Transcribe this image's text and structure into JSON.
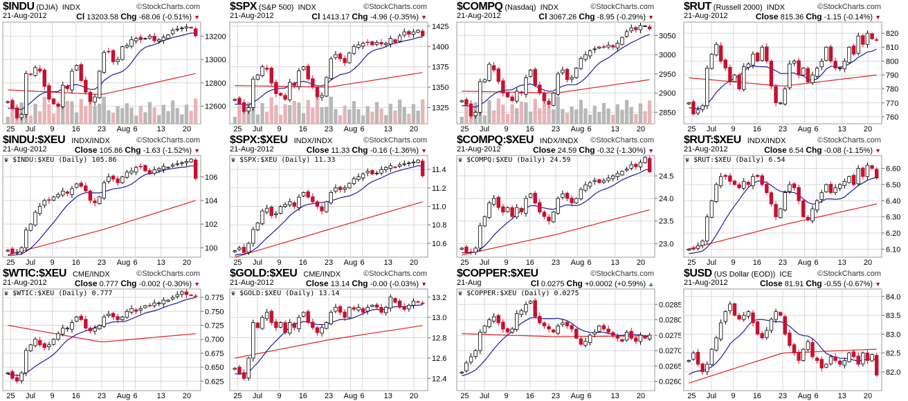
{
  "watermark": "©StockCharts.com",
  "colors": {
    "up": "#000000",
    "down": "#c8102e",
    "ma_fast": "#1a1a9a",
    "ma_slow": "#e02020",
    "grid": "#d8d8d8",
    "vol_up": "#b8b8b8",
    "vol_down": "#e8b4b8"
  },
  "x_labels": [
    "25",
    "Jul",
    "9",
    "16",
    "23",
    "Aug",
    "6",
    "13",
    "20"
  ],
  "chart_data": [
    {
      "type": "candlestick",
      "ticker": "$INDU",
      "name": "(DJIA)",
      "exchange": "INDX",
      "date": "21-Aug-2012",
      "close_label": "Cl",
      "close": "13203.58",
      "chg_label": "Chg",
      "chg": "-68.06 (-0.51%)",
      "dir": "down",
      "legend": "",
      "yticks": [
        "13200",
        "13000",
        "12800",
        "12600"
      ],
      "ylim": [
        12450,
        13320
      ],
      "closes": [
        12640,
        12580,
        12500,
        12530,
        12880,
        12870,
        12930,
        12900,
        12770,
        12660,
        12620,
        12600,
        12780,
        12750,
        12900,
        12950,
        12820,
        12720,
        12640,
        12680,
        12900,
        13060,
        13070,
        12980,
        13000,
        13110,
        13120,
        13170,
        13180,
        13170,
        13180,
        13200,
        13160,
        13170,
        13190,
        13210,
        13250,
        13260,
        13270,
        13280,
        13270,
        13203.58
      ],
      "ma_slow": [
        12740,
        12700,
        12880
      ],
      "volume": true
    },
    {
      "type": "candlestick",
      "ticker": "$SPX",
      "name": "(S&P 500)",
      "exchange": "INDX",
      "date": "21-Aug-2012",
      "close_label": "Cl",
      "close": "1413.17",
      "chg_label": "Chg",
      "chg": "-4.96 (-0.35%)",
      "dir": "down",
      "legend": "",
      "yticks": [
        "1425",
        "1400",
        "1375",
        "1350",
        "1325"
      ],
      "ylim": [
        1305,
        1430
      ],
      "closes": [
        1335,
        1330,
        1320,
        1325,
        1360,
        1365,
        1375,
        1372,
        1355,
        1342,
        1340,
        1335,
        1356,
        1352,
        1370,
        1375,
        1360,
        1350,
        1338,
        1340,
        1362,
        1385,
        1390,
        1385,
        1380,
        1392,
        1400,
        1402,
        1404,
        1405,
        1402,
        1405,
        1403,
        1404,
        1410,
        1405,
        1413,
        1418,
        1415,
        1418,
        1420,
        1413.17
      ],
      "ma_slow": [
        1352,
        1350,
        1368
      ],
      "volume": true
    },
    {
      "type": "candlestick",
      "ticker": "$COMPQ",
      "name": "(Nasdaq)",
      "exchange": "INDX",
      "date": "21-Aug-2012",
      "close_label": "Cl",
      "close": "3067.26",
      "chg_label": "Chg",
      "chg": "-8.95 (-0.29%)",
      "dir": "down",
      "legend": "",
      "yticks": [
        "3050",
        "3000",
        "2950",
        "2900",
        "2850"
      ],
      "ylim": [
        2820,
        3085
      ],
      "closes": [
        2880,
        2870,
        2840,
        2850,
        2930,
        2935,
        2975,
        2960,
        2930,
        2900,
        2890,
        2880,
        2905,
        2900,
        2940,
        2960,
        2920,
        2900,
        2880,
        2870,
        2900,
        2950,
        2960,
        2935,
        2940,
        2965,
        2990,
        3000,
        3010,
        3015,
        3020,
        3020,
        3025,
        3020,
        3030,
        3045,
        3060,
        3070,
        3065,
        3076,
        3075,
        3067.26
      ],
      "ma_slow": [
        2905,
        2900,
        2935
      ],
      "volume": true
    },
    {
      "type": "candlestick",
      "ticker": "$RUT",
      "name": "(Russell 2000)",
      "exchange": "INDX",
      "date": "21-Aug-2012",
      "close_label": "Close",
      "close": "815.36",
      "chg_label": "Chg",
      "chg": "-1.15 (-0.14%)",
      "dir": "down",
      "legend": "",
      "yticks": [
        "820",
        "810",
        "800",
        "790",
        "780",
        "770",
        "760"
      ],
      "ylim": [
        755,
        828
      ],
      "closes": [
        770,
        762,
        765,
        768,
        795,
        805,
        812,
        800,
        795,
        785,
        790,
        780,
        796,
        798,
        805,
        800,
        810,
        800,
        782,
        770,
        770,
        780,
        798,
        800,
        790,
        795,
        785,
        790,
        795,
        800,
        810,
        800,
        795,
        795,
        800,
        810,
        805,
        818,
        812,
        820,
        816,
        815.36
      ],
      "ma_slow": [
        788,
        782,
        790
      ],
      "volume": false
    },
    {
      "type": "candlestick",
      "ticker": "$INDU:$XEU",
      "name": "",
      "exchange": "INDX/INDX",
      "date": "21-Aug-2012",
      "close_label": "Close",
      "close": "105.86",
      "chg_label": "Chg",
      "chg": "-1.63 (-1.52%)",
      "dir": "down",
      "legend": "$INDU:$XEU (Daily) 105.86",
      "yticks": [
        "106",
        "104",
        "102",
        "100"
      ],
      "ylim": [
        99.2,
        107.8
      ],
      "closes": [
        99.8,
        99.5,
        99.6,
        100,
        101.5,
        102,
        103,
        103.5,
        104,
        104,
        104.3,
        104.5,
        104.8,
        104.6,
        105,
        105.4,
        105.2,
        104.8,
        104,
        103.8,
        104.3,
        105.5,
        106,
        105.8,
        105.5,
        106,
        106.4,
        106.5,
        106.8,
        106.9,
        106.5,
        106.3,
        106.6,
        106.7,
        106.9,
        106.8,
        107,
        107.1,
        107.2,
        107.3,
        107.5,
        105.86
      ],
      "ma_slow": [
        99.4,
        101.5,
        104
      ],
      "volume": false
    },
    {
      "type": "candlestick",
      "ticker": "$SPX:$XEU",
      "name": "",
      "exchange": "INDX/INDX",
      "date": "21-Aug-2012",
      "close_label": "Close",
      "close": "11.33",
      "chg_label": "Chg",
      "chg": "-0.16 (-1.36%)",
      "dir": "down",
      "legend": "$SPX:$XEU (Daily) 11.33",
      "yticks": [
        "11.4",
        "11.2",
        "11.0",
        "10.8",
        "10.6"
      ],
      "ylim": [
        10.45,
        11.55
      ],
      "closes": [
        10.52,
        10.55,
        10.5,
        10.6,
        10.75,
        10.82,
        10.95,
        10.98,
        10.9,
        10.92,
        11.0,
        11.02,
        11.05,
        11.0,
        11.1,
        11.15,
        11.1,
        11.05,
        11.0,
        10.95,
        11.05,
        11.15,
        11.2,
        11.18,
        11.2,
        11.25,
        11.3,
        11.32,
        11.35,
        11.38,
        11.35,
        11.36,
        11.4,
        11.42,
        11.44,
        11.42,
        11.45,
        11.46,
        11.47,
        11.48,
        11.5,
        11.33
      ],
      "ma_slow": [
        10.45,
        10.75,
        11.05
      ],
      "volume": false
    },
    {
      "type": "candlestick",
      "ticker": "$COMPQ:$XEU",
      "name": "",
      "exchange": "INDX/INDX",
      "date": "21-Aug-2012",
      "close_label": "Close",
      "close": "24.59",
      "chg_label": "Chg",
      "chg": "-0.32 (-1.30%)",
      "dir": "down",
      "legend": "$COMPQ:$XEU (Daily) 24.59",
      "yticks": [
        "24.5",
        "24.0",
        "23.5",
        "23.0"
      ],
      "ylim": [
        22.7,
        24.95
      ],
      "closes": [
        22.9,
        22.8,
        22.8,
        22.9,
        23.4,
        23.6,
        23.9,
        24.0,
        23.8,
        23.7,
        23.8,
        23.6,
        23.8,
        23.7,
        24.0,
        24.1,
        23.9,
        23.7,
        23.6,
        23.5,
        23.7,
        24.0,
        24.1,
        24.0,
        23.9,
        24.0,
        24.2,
        24.3,
        24.35,
        24.4,
        24.35,
        24.4,
        24.45,
        24.5,
        24.55,
        24.6,
        24.65,
        24.75,
        24.7,
        24.8,
        24.91,
        24.59
      ],
      "ma_slow": [
        22.75,
        23.2,
        23.75
      ],
      "volume": false
    },
    {
      "type": "candlestick",
      "ticker": "$RUT:$XEU",
      "name": "",
      "exchange": "INDX/INDX",
      "date": "21-Aug-2012",
      "close_label": "Close",
      "close": "6.54",
      "chg_label": "Chg",
      "chg": "-0.08 (-1.15%)",
      "dir": "down",
      "legend": "$RUT:$XEU (Daily) 6.54",
      "yticks": [
        "6.60",
        "6.50",
        "6.40",
        "6.30",
        "6.20",
        "6.10"
      ],
      "ylim": [
        6.05,
        6.68
      ],
      "closes": [
        6.1,
        6.1,
        6.12,
        6.15,
        6.3,
        6.4,
        6.5,
        6.55,
        6.55,
        6.52,
        6.5,
        6.48,
        6.52,
        6.5,
        6.55,
        6.55,
        6.5,
        6.45,
        6.38,
        6.3,
        6.35,
        6.45,
        6.5,
        6.48,
        6.4,
        6.3,
        6.28,
        6.35,
        6.4,
        6.45,
        6.5,
        6.45,
        6.48,
        6.5,
        6.52,
        6.55,
        6.5,
        6.6,
        6.55,
        6.62,
        6.6,
        6.54
      ],
      "ma_slow": [
        6.1,
        6.25,
        6.38
      ],
      "volume": false
    },
    {
      "type": "candlestick",
      "ticker": "$WTIC:$XEU",
      "name": "",
      "exchange": "CME/INDX",
      "date": "21-Aug-2012",
      "close_label": "Close",
      "close": "0.777",
      "chg_label": "Chg",
      "chg": "-0.002 (-0.30%)",
      "dir": "down",
      "legend": "$WTIC:$XEU (Daily) 0.777",
      "yticks": [
        "0.775",
        "0.750",
        "0.725",
        "0.700",
        "0.675",
        "0.650",
        "0.625"
      ],
      "ylim": [
        0.608,
        0.79
      ],
      "closes": [
        0.64,
        0.63,
        0.625,
        0.64,
        0.68,
        0.69,
        0.7,
        0.69,
        0.685,
        0.69,
        0.7,
        0.71,
        0.72,
        0.72,
        0.73,
        0.74,
        0.735,
        0.72,
        0.715,
        0.72,
        0.725,
        0.74,
        0.745,
        0.74,
        0.735,
        0.74,
        0.75,
        0.755,
        0.75,
        0.755,
        0.76,
        0.76,
        0.765,
        0.765,
        0.77,
        0.77,
        0.775,
        0.78,
        0.785,
        0.78,
        0.779,
        0.777
      ],
      "ma_slow": [
        0.725,
        0.695,
        0.71
      ],
      "volume": false
    },
    {
      "type": "candlestick",
      "ticker": "$GOLD:$XEU",
      "name": "",
      "exchange": "CME/INDX",
      "date": "21-Aug-2012",
      "close_label": "Close",
      "close": "13.14",
      "chg_label": "Chg",
      "chg": "-0.00 (-0.03%)",
      "dir": "down",
      "legend": "$GOLD:$XEU (Daily) 13.14",
      "yticks": [
        "13.2",
        "13.0",
        "12.8",
        "12.6",
        "12.4"
      ],
      "ylim": [
        12.28,
        13.28
      ],
      "closes": [
        12.5,
        12.45,
        12.4,
        12.6,
        12.95,
        12.9,
        13.0,
        13.05,
        12.95,
        12.9,
        12.95,
        12.85,
        12.95,
        12.9,
        13.0,
        13.05,
        12.95,
        12.9,
        12.85,
        12.9,
        12.95,
        13.05,
        13.1,
        13.05,
        13.0,
        13.1,
        13.08,
        13.1,
        13.05,
        13.1,
        13.12,
        13.1,
        13.05,
        13.1,
        13.2,
        13.15,
        13.1,
        13.08,
        13.12,
        13.16,
        13.15,
        13.14
      ],
      "ma_slow": [
        12.6,
        12.78,
        12.92
      ],
      "volume": false
    },
    {
      "type": "candlestick",
      "ticker": "$COPPER:$XEU",
      "name": "",
      "exchange": "",
      "date": "21-Aug",
      "close_label": "Cl",
      "close": "0.0275",
      "chg_label": "Chg",
      "chg": "+0.0002 (+0.59%)",
      "dir": "up",
      "legend": "$COPPER:$XEU (Daily) 0.0275",
      "yticks": [
        "0.0285",
        "0.0280",
        "0.0275",
        "0.0270",
        "0.0265",
        "0.0260"
      ],
      "ylim": [
        0.0257,
        0.029
      ],
      "closes": [
        0.0263,
        0.0266,
        0.0268,
        0.027,
        0.0276,
        0.0278,
        0.028,
        0.0281,
        0.0279,
        0.0277,
        0.0276,
        0.0277,
        0.0282,
        0.0283,
        0.0285,
        0.0286,
        0.0281,
        0.0279,
        0.0278,
        0.0277,
        0.0276,
        0.0278,
        0.0279,
        0.0278,
        0.0277,
        0.0274,
        0.0272,
        0.0273,
        0.0275,
        0.0276,
        0.0278,
        0.0277,
        0.0276,
        0.0275,
        0.0274,
        0.0273,
        0.0276,
        0.0274,
        0.0273,
        0.0275,
        0.0274,
        0.0275
      ],
      "ma_slow": [
        0.02755,
        0.02745,
        0.02748
      ],
      "volume": false
    },
    {
      "type": "candlestick",
      "ticker": "$USD",
      "name": "(US Dollar (EOD))",
      "exchange": "ICE",
      "date": "21-Aug-2012",
      "close_label": "Close",
      "close": "81.91",
      "chg_label": "Chg",
      "chg": "-0.55 (-0.67%)",
      "dir": "down",
      "legend": "",
      "yticks": [
        "84.0",
        "83.5",
        "83.0",
        "82.5",
        "82.0"
      ],
      "ylim": [
        81.5,
        84.2
      ],
      "closes": [
        82.3,
        82.5,
        82.2,
        82.0,
        82.2,
        82.6,
        82.9,
        83.3,
        83.6,
        83.8,
        83.5,
        83.4,
        83.5,
        83.6,
        83.3,
        83.0,
        82.9,
        83.1,
        83.4,
        83.6,
        83.5,
        83.0,
        82.7,
        82.5,
        82.3,
        82.6,
        82.8,
        82.4,
        82.3,
        82.1,
        82.2,
        82.4,
        82.3,
        82.2,
        82.3,
        82.5,
        82.4,
        82.2,
        82.5,
        82.3,
        82.46,
        81.91
      ],
      "ma_slow": [
        81.7,
        82.5,
        82.6
      ],
      "volume": false
    }
  ]
}
